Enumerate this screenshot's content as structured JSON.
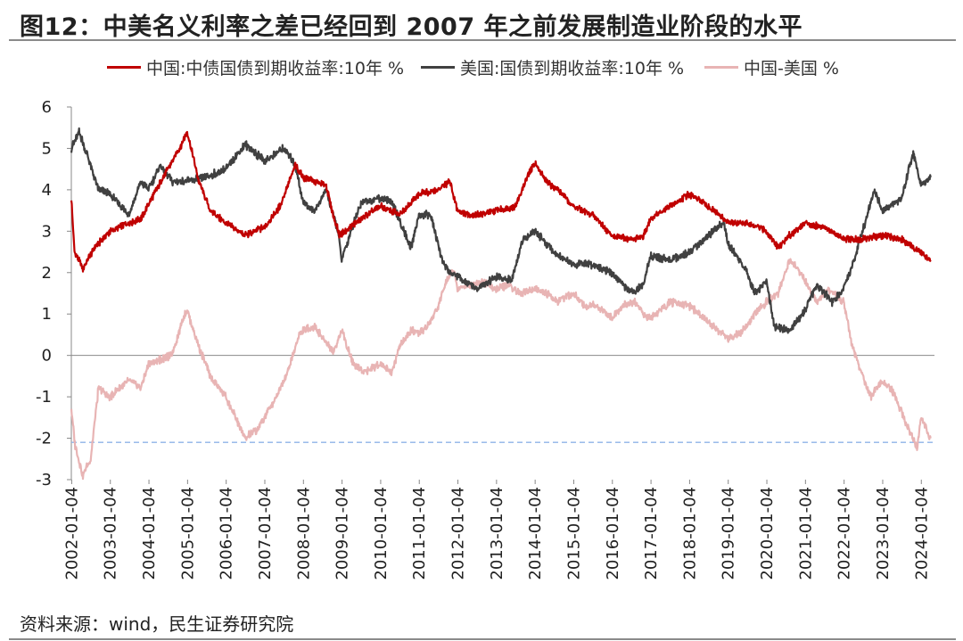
{
  "title": "图12：中美名义利率之差已经回到 2007 年之前发展制造业阶段的水平",
  "source": "资料来源：wind，民生证券研究院",
  "colors": {
    "cn": "#c00000",
    "us": "#404040",
    "diff": "#e8b4b4",
    "ref": "#8fb3e8"
  },
  "chart_data": {
    "type": "line",
    "title": "图12：中美名义利率之差已经回到 2007 年之前发展制造业阶段的水平",
    "xlabel": "",
    "ylabel": "",
    "ylim": [
      -3,
      6
    ],
    "yticks": [
      6,
      5,
      4,
      3,
      2,
      1,
      0,
      -1,
      -2,
      -3
    ],
    "xticks": [
      "2002-01-04",
      "2003-01-04",
      "2004-01-04",
      "2005-01-04",
      "2006-01-04",
      "2007-01-04",
      "2008-01-04",
      "2009-01-04",
      "2010-01-04",
      "2011-01-04",
      "2012-01-04",
      "2013-01-04",
      "2014-01-04",
      "2015-01-04",
      "2016-01-04",
      "2017-01-04",
      "2018-01-04",
      "2019-01-04",
      "2020-01-04",
      "2021-01-04",
      "2022-01-04",
      "2023-01-04",
      "2024-01-04"
    ],
    "legend_position": "top",
    "grid": false,
    "reference_line": {
      "y": -2.1,
      "style": "dashed"
    },
    "series": [
      {
        "name": "中国:中债国债到期收益率:10年 %",
        "key": "cn",
        "x": [
          2002.0,
          2002.08,
          2002.3,
          2002.6,
          2003.0,
          2003.5,
          2003.8,
          2004.2,
          2004.5,
          2004.8,
          2005.0,
          2005.3,
          2005.6,
          2006.0,
          2006.5,
          2007.0,
          2007.4,
          2007.8,
          2008.0,
          2008.3,
          2008.6,
          2008.8,
          2008.95,
          2009.1,
          2009.5,
          2010.0,
          2010.5,
          2011.0,
          2011.5,
          2011.8,
          2012.0,
          2012.3,
          2012.6,
          2013.0,
          2013.5,
          2013.8,
          2014.0,
          2014.3,
          2014.6,
          2015.0,
          2015.5,
          2016.0,
          2016.5,
          2016.8,
          2017.0,
          2017.5,
          2018.0,
          2018.5,
          2019.0,
          2019.5,
          2020.0,
          2020.3,
          2020.6,
          2021.0,
          2021.5,
          2022.0,
          2022.5,
          2023.0,
          2023.5,
          2024.0,
          2024.25
        ],
        "values": [
          3.8,
          2.5,
          2.1,
          2.6,
          3.0,
          3.2,
          3.3,
          4.0,
          4.5,
          5.0,
          5.4,
          4.2,
          3.5,
          3.2,
          2.9,
          3.1,
          3.6,
          4.6,
          4.3,
          4.2,
          4.1,
          3.3,
          2.9,
          3.0,
          3.3,
          3.6,
          3.4,
          3.9,
          4.0,
          4.2,
          3.5,
          3.4,
          3.4,
          3.5,
          3.6,
          4.3,
          4.65,
          4.2,
          4.0,
          3.6,
          3.4,
          2.9,
          2.8,
          2.85,
          3.3,
          3.6,
          3.9,
          3.6,
          3.2,
          3.2,
          3.0,
          2.6,
          2.9,
          3.2,
          3.1,
          2.8,
          2.8,
          2.9,
          2.8,
          2.5,
          2.3
        ]
      },
      {
        "name": "美国:国债到期收益率:10年 %",
        "key": "us",
        "x": [
          2002.0,
          2002.2,
          2002.5,
          2002.7,
          2003.0,
          2003.5,
          2003.8,
          2004.0,
          2004.3,
          2004.6,
          2005.0,
          2005.5,
          2006.0,
          2006.5,
          2007.0,
          2007.5,
          2007.8,
          2008.0,
          2008.3,
          2008.6,
          2008.9,
          2009.0,
          2009.5,
          2010.0,
          2010.3,
          2010.8,
          2011.0,
          2011.3,
          2011.6,
          2011.8,
          2012.0,
          2012.5,
          2013.0,
          2013.4,
          2013.7,
          2014.0,
          2014.5,
          2015.0,
          2015.5,
          2016.0,
          2016.5,
          2016.8,
          2017.0,
          2017.5,
          2018.0,
          2018.5,
          2018.9,
          2019.0,
          2019.5,
          2019.7,
          2020.0,
          2020.2,
          2020.6,
          2021.0,
          2021.3,
          2021.7,
          2022.0,
          2022.3,
          2022.8,
          2023.0,
          2023.5,
          2023.8,
          2024.0,
          2024.25
        ],
        "values": [
          5.0,
          5.4,
          4.6,
          4.0,
          3.9,
          3.4,
          4.2,
          4.0,
          4.6,
          4.2,
          4.2,
          4.3,
          4.5,
          5.1,
          4.7,
          5.0,
          4.6,
          3.7,
          3.5,
          4.0,
          3.0,
          2.3,
          3.7,
          3.8,
          3.7,
          2.6,
          3.4,
          3.4,
          2.3,
          2.0,
          1.9,
          1.6,
          1.9,
          1.8,
          2.8,
          3.0,
          2.5,
          2.2,
          2.2,
          2.0,
          1.5,
          1.7,
          2.4,
          2.3,
          2.5,
          2.9,
          3.2,
          2.7,
          2.0,
          1.5,
          1.8,
          0.7,
          0.6,
          1.1,
          1.7,
          1.3,
          1.6,
          2.4,
          4.0,
          3.5,
          3.8,
          4.9,
          4.1,
          4.3
        ]
      },
      {
        "name": "中国-美国 %",
        "key": "diff",
        "x": [
          2002.0,
          2002.1,
          2002.3,
          2002.5,
          2002.7,
          2003.0,
          2003.5,
          2003.8,
          2004.0,
          2004.3,
          2004.6,
          2004.9,
          2005.0,
          2005.3,
          2005.6,
          2006.0,
          2006.3,
          2006.5,
          2006.8,
          2007.0,
          2007.3,
          2007.6,
          2007.9,
          2008.0,
          2008.3,
          2008.6,
          2008.8,
          2009.0,
          2009.3,
          2009.6,
          2010.0,
          2010.3,
          2010.5,
          2010.8,
          2011.0,
          2011.3,
          2011.5,
          2011.7,
          2011.9,
          2012.0,
          2012.3,
          2012.6,
          2013.0,
          2013.3,
          2013.6,
          2014.0,
          2014.3,
          2014.6,
          2015.0,
          2015.3,
          2015.6,
          2016.0,
          2016.3,
          2016.6,
          2016.8,
          2017.0,
          2017.5,
          2018.0,
          2018.5,
          2019.0,
          2019.4,
          2019.7,
          2020.0,
          2020.3,
          2020.6,
          2020.8,
          2021.0,
          2021.3,
          2021.6,
          2022.0,
          2022.2,
          2022.4,
          2022.7,
          2023.0,
          2023.3,
          2023.6,
          2023.9,
          2024.0,
          2024.25
        ],
        "values": [
          -1.3,
          -2.2,
          -2.9,
          -2.5,
          -0.8,
          -1.0,
          -0.6,
          -0.8,
          -0.2,
          -0.1,
          0.0,
          0.9,
          1.1,
          0.2,
          -0.5,
          -1.0,
          -1.6,
          -2.0,
          -1.8,
          -1.5,
          -1.0,
          -0.4,
          0.5,
          0.6,
          0.7,
          0.3,
          0.1,
          0.6,
          -0.2,
          -0.4,
          -0.2,
          -0.4,
          0.2,
          0.6,
          0.5,
          0.8,
          1.2,
          1.8,
          2.1,
          1.6,
          1.7,
          1.8,
          1.6,
          1.7,
          1.5,
          1.6,
          1.5,
          1.3,
          1.5,
          1.2,
          1.2,
          0.9,
          1.2,
          1.3,
          1.0,
          0.9,
          1.3,
          1.2,
          0.8,
          0.4,
          0.6,
          1.0,
          1.3,
          1.5,
          2.3,
          2.1,
          1.8,
          1.3,
          1.6,
          1.3,
          0.3,
          -0.3,
          -1.0,
          -0.6,
          -0.9,
          -1.6,
          -2.2,
          -1.5,
          -2.0
        ]
      }
    ]
  }
}
